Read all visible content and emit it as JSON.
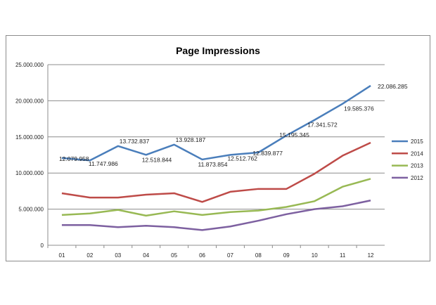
{
  "chart_data": {
    "type": "line",
    "title": "Page Impressions",
    "xlabel": "",
    "ylabel": "",
    "categories": [
      "01",
      "02",
      "03",
      "04",
      "05",
      "06",
      "07",
      "08",
      "09",
      "10",
      "11",
      "12"
    ],
    "ylim": [
      0,
      25000000
    ],
    "yticks": [
      0,
      5000000,
      10000000,
      15000000,
      20000000,
      25000000
    ],
    "ytick_labels": [
      "0",
      "5.000.000",
      "10.000.000",
      "15.000.000",
      "20.000.000",
      "25.000.000"
    ],
    "grid": true,
    "legend": "right",
    "series": [
      {
        "name": "2015",
        "color": "#4a7ebb",
        "values": [
          12079958,
          11747986,
          13732837,
          12518844,
          13928187,
          11873854,
          12512762,
          12839877,
          15195345,
          17341572,
          19585376,
          22086285
        ],
        "labels": [
          "12.079.958",
          "11.747.986",
          "13.732.837",
          "12.518.844",
          "13.928.187",
          "11.873.854",
          "12.512.762",
          "12.839.877",
          "15.195.345",
          "17.341.572",
          "19.585.376",
          "22.086.285"
        ]
      },
      {
        "name": "2014",
        "color": "#be4b48",
        "values": [
          7200000,
          6600000,
          6600000,
          7000000,
          7200000,
          6000000,
          7400000,
          7800000,
          7800000,
          9900000,
          12400000,
          14200000
        ]
      },
      {
        "name": "2013",
        "color": "#98b954",
        "values": [
          4200000,
          4400000,
          4900000,
          4100000,
          4700000,
          4200000,
          4600000,
          4800000,
          5300000,
          6100000,
          8100000,
          9200000
        ]
      },
      {
        "name": "2012",
        "color": "#7d60a0",
        "values": [
          2800000,
          2800000,
          2500000,
          2700000,
          2500000,
          2100000,
          2600000,
          3400000,
          4300000,
          5000000,
          5400000,
          6200000
        ]
      }
    ]
  }
}
